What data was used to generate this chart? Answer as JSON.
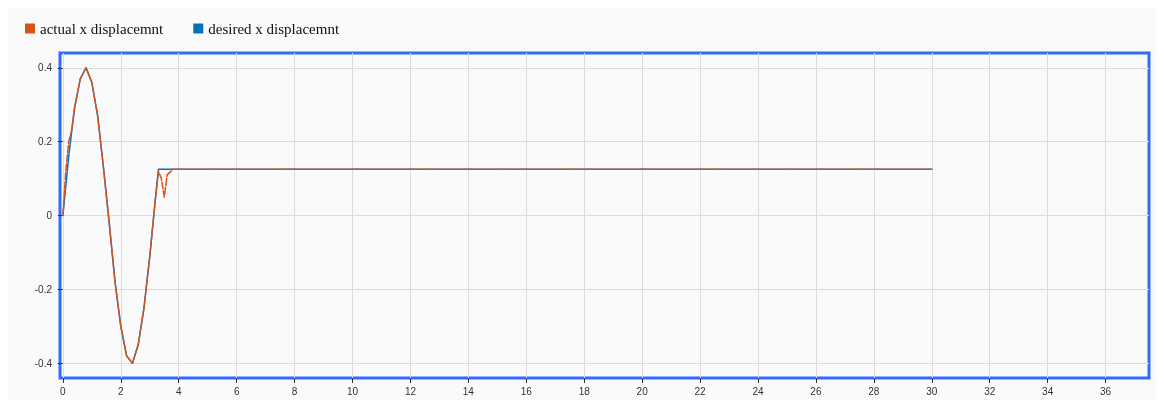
{
  "chart_data": {
    "type": "line",
    "legend": "top left",
    "grid": true,
    "marker": "none",
    "xlim": [
      -0.1,
      37.5
    ],
    "xticks": [
      0,
      2,
      4,
      6,
      8,
      10,
      12,
      14,
      16,
      18,
      20,
      22,
      24,
      26,
      28,
      30,
      32,
      34,
      36
    ],
    "ylim": [
      -0.44,
      0.44
    ],
    "yticks": [
      -0.4,
      -0.2,
      0,
      0.2,
      0.4
    ],
    "series": [
      {
        "name": "actual x displacemnt",
        "color": "#d95319",
        "line_style": "dashed",
        "x": [
          0,
          0.1,
          0.2,
          0.3,
          0.4,
          0.6,
          0.8,
          1.0,
          1.2,
          1.4,
          1.6,
          1.8,
          2.0,
          2.2,
          2.4,
          2.6,
          2.8,
          3.0,
          3.2,
          3.3,
          3.4,
          3.5,
          3.6,
          3.8,
          30
        ],
        "values": [
          0,
          0.12,
          0.2,
          0.23,
          0.29,
          0.37,
          0.4,
          0.36,
          0.27,
          0.13,
          -0.02,
          -0.18,
          -0.3,
          -0.38,
          -0.4,
          -0.35,
          -0.25,
          -0.11,
          0.05,
          0.12,
          0.1,
          0.05,
          0.11,
          0.125,
          0.125
        ]
      },
      {
        "name": "desired x displacemnt",
        "color": "#0072bd",
        "line_style": "solid",
        "x": [
          0,
          0.2,
          0.4,
          0.6,
          0.8,
          1.0,
          1.2,
          1.4,
          1.6,
          1.8,
          2.0,
          2.2,
          2.4,
          2.6,
          2.8,
          3.0,
          3.2,
          3.3,
          30
        ],
        "values": [
          0,
          0.16,
          0.29,
          0.37,
          0.4,
          0.36,
          0.27,
          0.13,
          -0.02,
          -0.18,
          -0.3,
          -0.38,
          -0.4,
          -0.35,
          -0.25,
          -0.11,
          0.05,
          0.125,
          0.125
        ]
      }
    ]
  }
}
